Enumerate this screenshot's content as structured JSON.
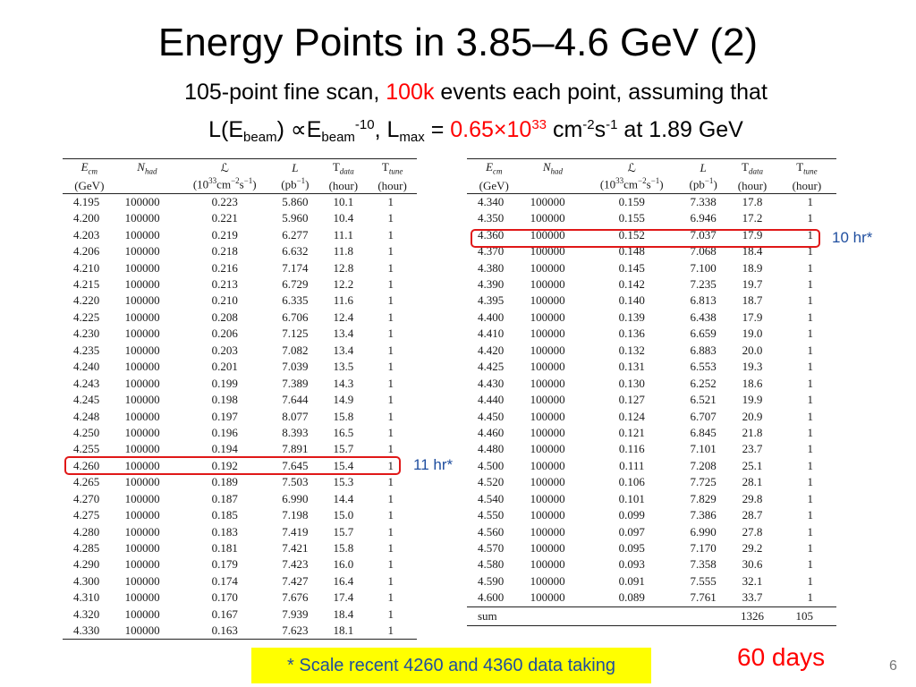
{
  "slide": {
    "title": "Energy Points in 3.85–4.6 GeV (2)",
    "subtitle1": {
      "a": "105-point fine scan, ",
      "b": "100k",
      "c": " events each point, assuming that"
    },
    "subtitle2": {
      "p1": "L(E",
      "s1": "beam",
      "p2": ") ∝E",
      "s2": "beam",
      "sup1": "-10",
      "p3": ", L",
      "s3": "max",
      "p4": " = ",
      "red_val": "0.65×10",
      "red_sup": "33",
      "p5": " cm",
      "sup2": "-2",
      "p6": "s",
      "sup3": "-1",
      "p7": " at 1.89 GeV"
    },
    "annotation_left": "11 hr*",
    "annotation_right": "10 hr*",
    "banner": "* Scale recent 4260 and 4360 data taking",
    "days": "60 days",
    "page_number": "6",
    "accent_red": "#ff0000",
    "accent_blue": "#1f4e9f",
    "banner_bg": "#ffff00"
  },
  "table_headers": {
    "ecm": "E",
    "ecm_sub": "cm",
    "ecm_unit": "(GeV)",
    "nhad": "N",
    "nhad_sub": "had",
    "lumi": "ℒ",
    "lumi_unit_a": "(10",
    "lumi_unit_sup": "33",
    "lumi_unit_b": "cm",
    "lumi_unit_sup2": "−2",
    "lumi_unit_c": "s",
    "lumi_unit_sup3": "−1",
    "lumi_unit_d": ")",
    "L": "L",
    "L_unit_a": "(pb",
    "L_unit_sup": "−1",
    "L_unit_b": ")",
    "tdata": "T",
    "tdata_sub": "data",
    "tdata_unit": "(hour)",
    "ttune": "T",
    "ttune_sub": "tune",
    "ttune_unit": "(hour)"
  },
  "table_left": [
    [
      "4.195",
      "100000",
      "0.223",
      "5.860",
      "10.1",
      "1"
    ],
    [
      "4.200",
      "100000",
      "0.221",
      "5.960",
      "10.4",
      "1"
    ],
    [
      "4.203",
      "100000",
      "0.219",
      "6.277",
      "11.1",
      "1"
    ],
    [
      "4.206",
      "100000",
      "0.218",
      "6.632",
      "11.8",
      "1"
    ],
    [
      "4.210",
      "100000",
      "0.216",
      "7.174",
      "12.8",
      "1"
    ],
    [
      "4.215",
      "100000",
      "0.213",
      "6.729",
      "12.2",
      "1"
    ],
    [
      "4.220",
      "100000",
      "0.210",
      "6.335",
      "11.6",
      "1"
    ],
    [
      "4.225",
      "100000",
      "0.208",
      "6.706",
      "12.4",
      "1"
    ],
    [
      "4.230",
      "100000",
      "0.206",
      "7.125",
      "13.4",
      "1"
    ],
    [
      "4.235",
      "100000",
      "0.203",
      "7.082",
      "13.4",
      "1"
    ],
    [
      "4.240",
      "100000",
      "0.201",
      "7.039",
      "13.5",
      "1"
    ],
    [
      "4.243",
      "100000",
      "0.199",
      "7.389",
      "14.3",
      "1"
    ],
    [
      "4.245",
      "100000",
      "0.198",
      "7.644",
      "14.9",
      "1"
    ],
    [
      "4.248",
      "100000",
      "0.197",
      "8.077",
      "15.8",
      "1"
    ],
    [
      "4.250",
      "100000",
      "0.196",
      "8.393",
      "16.5",
      "1"
    ],
    [
      "4.255",
      "100000",
      "0.194",
      "7.891",
      "15.7",
      "1"
    ],
    [
      "4.260",
      "100000",
      "0.192",
      "7.645",
      "15.4",
      "1"
    ],
    [
      "4.265",
      "100000",
      "0.189",
      "7.503",
      "15.3",
      "1"
    ],
    [
      "4.270",
      "100000",
      "0.187",
      "6.990",
      "14.4",
      "1"
    ],
    [
      "4.275",
      "100000",
      "0.185",
      "7.198",
      "15.0",
      "1"
    ],
    [
      "4.280",
      "100000",
      "0.183",
      "7.419",
      "15.7",
      "1"
    ],
    [
      "4.285",
      "100000",
      "0.181",
      "7.421",
      "15.8",
      "1"
    ],
    [
      "4.290",
      "100000",
      "0.179",
      "7.423",
      "16.0",
      "1"
    ],
    [
      "4.300",
      "100000",
      "0.174",
      "7.427",
      "16.4",
      "1"
    ],
    [
      "4.310",
      "100000",
      "0.170",
      "7.676",
      "17.4",
      "1"
    ],
    [
      "4.320",
      "100000",
      "0.167",
      "7.939",
      "18.4",
      "1"
    ],
    [
      "4.330",
      "100000",
      "0.163",
      "7.623",
      "18.1",
      "1"
    ]
  ],
  "table_right": [
    [
      "4.340",
      "100000",
      "0.159",
      "7.338",
      "17.8",
      "1"
    ],
    [
      "4.350",
      "100000",
      "0.155",
      "6.946",
      "17.2",
      "1"
    ],
    [
      "4.360",
      "100000",
      "0.152",
      "7.037",
      "17.9",
      "1"
    ],
    [
      "4.370",
      "100000",
      "0.148",
      "7.068",
      "18.4",
      "1"
    ],
    [
      "4.380",
      "100000",
      "0.145",
      "7.100",
      "18.9",
      "1"
    ],
    [
      "4.390",
      "100000",
      "0.142",
      "7.235",
      "19.7",
      "1"
    ],
    [
      "4.395",
      "100000",
      "0.140",
      "6.813",
      "18.7",
      "1"
    ],
    [
      "4.400",
      "100000",
      "0.139",
      "6.438",
      "17.9",
      "1"
    ],
    [
      "4.410",
      "100000",
      "0.136",
      "6.659",
      "19.0",
      "1"
    ],
    [
      "4.420",
      "100000",
      "0.132",
      "6.883",
      "20.0",
      "1"
    ],
    [
      "4.425",
      "100000",
      "0.131",
      "6.553",
      "19.3",
      "1"
    ],
    [
      "4.430",
      "100000",
      "0.130",
      "6.252",
      "18.6",
      "1"
    ],
    [
      "4.440",
      "100000",
      "0.127",
      "6.521",
      "19.9",
      "1"
    ],
    [
      "4.450",
      "100000",
      "0.124",
      "6.707",
      "20.9",
      "1"
    ],
    [
      "4.460",
      "100000",
      "0.121",
      "6.845",
      "21.8",
      "1"
    ],
    [
      "4.480",
      "100000",
      "0.116",
      "7.101",
      "23.7",
      "1"
    ],
    [
      "4.500",
      "100000",
      "0.111",
      "7.208",
      "25.1",
      "1"
    ],
    [
      "4.520",
      "100000",
      "0.106",
      "7.725",
      "28.1",
      "1"
    ],
    [
      "4.540",
      "100000",
      "0.101",
      "7.829",
      "29.8",
      "1"
    ],
    [
      "4.550",
      "100000",
      "0.099",
      "7.386",
      "28.7",
      "1"
    ],
    [
      "4.560",
      "100000",
      "0.097",
      "6.990",
      "27.8",
      "1"
    ],
    [
      "4.570",
      "100000",
      "0.095",
      "7.170",
      "29.2",
      "1"
    ],
    [
      "4.580",
      "100000",
      "0.093",
      "7.358",
      "30.6",
      "1"
    ],
    [
      "4.590",
      "100000",
      "0.091",
      "7.555",
      "32.1",
      "1"
    ],
    [
      "4.600",
      "100000",
      "0.089",
      "7.761",
      "33.7",
      "1"
    ]
  ],
  "table_right_sum": {
    "label": "sum",
    "tdata": "1326",
    "ttune": "105"
  }
}
